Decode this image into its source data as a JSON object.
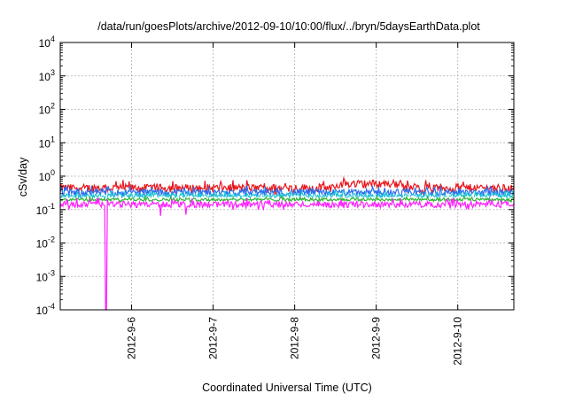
{
  "chart_data": {
    "type": "line",
    "title": "/data/run/goesPlots/archive/2012-09-10/10:00/flux/../bryn/5daysEarthData.plot",
    "xlabel": "Coordinated Universal Time (UTC)",
    "ylabel": "cSv/day",
    "y_scale": "log",
    "ylim": [
      0.0001,
      10000
    ],
    "y_ticks": [
      {
        "value": 0.0001,
        "base": "10",
        "exp": "-4"
      },
      {
        "value": 0.001,
        "base": "10",
        "exp": "-3"
      },
      {
        "value": 0.01,
        "base": "10",
        "exp": "-2"
      },
      {
        "value": 0.1,
        "base": "10",
        "exp": "-1"
      },
      {
        "value": 1,
        "base": "10",
        "exp": "0"
      },
      {
        "value": 10,
        "base": "10",
        "exp": "1"
      },
      {
        "value": 100,
        "base": "10",
        "exp": "2"
      },
      {
        "value": 1000,
        "base": "10",
        "exp": "3"
      },
      {
        "value": 10000,
        "base": "10",
        "exp": "4"
      }
    ],
    "xlim": [
      "2012-09-05T03:00",
      "2012-09-10T16:30"
    ],
    "x_ticks": [
      "2012-9-6",
      "2012-9-7",
      "2012-9-8",
      "2012-9-9",
      "2012-9-10"
    ],
    "x_tick_values": [
      "2012-09-06T00:00",
      "2012-09-07T00:00",
      "2012-09-08T00:00",
      "2012-09-09T00:00",
      "2012-09-10T00:00"
    ],
    "grid": true,
    "legend": "none",
    "series": [
      {
        "color": "#e8161b",
        "baseline": 0.45,
        "variation": 0.4,
        "note_days": []
      },
      {
        "color": "#2a6df0",
        "baseline": 0.33,
        "variation": 0.35
      },
      {
        "color": "#1ec3d8",
        "baseline": 0.26,
        "variation": 0.25
      },
      {
        "color": "#ffffff",
        "baseline": 0.22,
        "variation": 0.12
      },
      {
        "color": "#32b432",
        "baseline": 0.2,
        "variation": 0.15
      },
      {
        "color": "#ff20ff",
        "baseline": 0.145,
        "variation": 0.3
      }
    ],
    "events": [
      {
        "series_color": "#ff20ff",
        "time": "2012-09-05T16:30",
        "min_value": 0.0001
      },
      {
        "series_color": "#ff20ff",
        "time": "2012-09-06T08:30",
        "min_value": 0.065
      },
      {
        "series_color": "#ff20ff",
        "time": "2012-09-06T16:00",
        "min_value": 0.07
      }
    ],
    "hump": {
      "start": "2012-09-08T13:00",
      "end": "2012-09-09T08:00",
      "factor": 1.35
    }
  }
}
